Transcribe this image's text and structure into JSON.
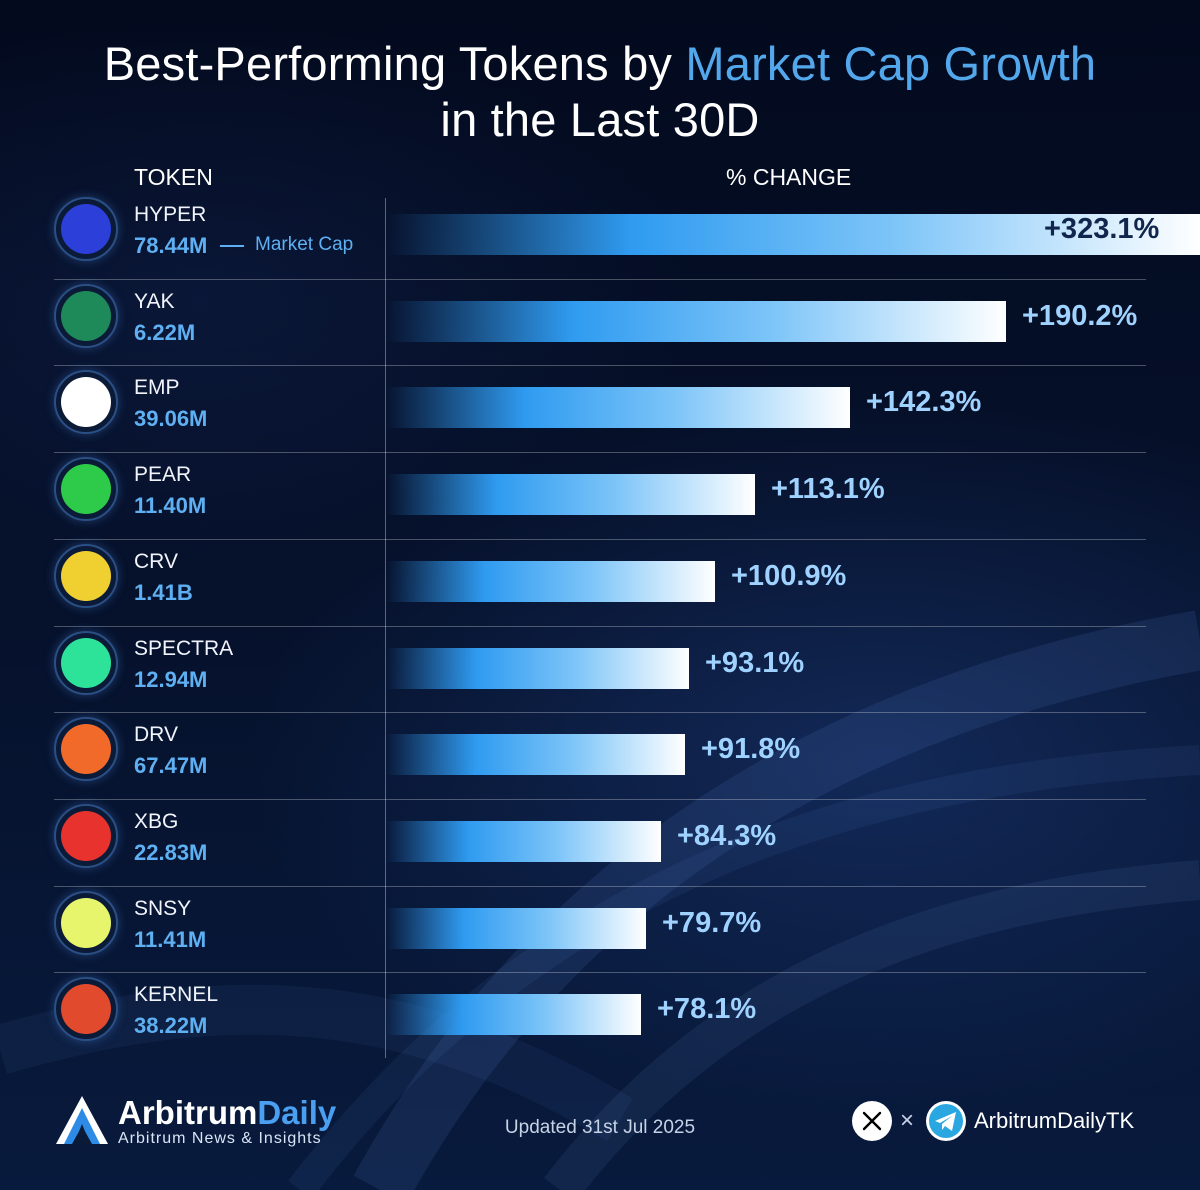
{
  "title": {
    "line1_pre": "Best-Performing Tokens by ",
    "line1_highlight": "Market Cap Growth",
    "line2": "in the Last 30D"
  },
  "columns": {
    "token": "TOKEN",
    "change": "% CHANGE"
  },
  "market_cap_label": "Market Cap",
  "chart_data": {
    "type": "bar",
    "orientation": "horizontal",
    "title": "Best-Performing Tokens by Market Cap Growth in the Last 30D",
    "xlabel": "% CHANGE",
    "ylabel": "TOKEN",
    "categories": [
      "HYPER",
      "YAK",
      "EMP",
      "PEAR",
      "CRV",
      "SPECTRA",
      "DRV",
      "XBG",
      "SNSY",
      "KERNEL"
    ],
    "series": [
      {
        "name": "% CHANGE",
        "values": [
          323.1,
          190.2,
          142.3,
          113.1,
          100.9,
          93.1,
          91.8,
          84.3,
          79.7,
          78.1
        ]
      }
    ],
    "value_labels": [
      "+323.1%",
      "+190.2%",
      "+142.3%",
      "+113.1%",
      "+100.9%",
      "+93.1%",
      "+91.8%",
      "+84.3%",
      "+79.7%",
      "+78.1%"
    ],
    "market_caps": [
      "78.44M",
      "6.22M",
      "39.06M",
      "11.40M",
      "1.41B",
      "12.94M",
      "67.47M",
      "22.83M",
      "11.41M",
      "38.22M"
    ],
    "grid": false,
    "legend": "none"
  },
  "tokens": [
    {
      "name": "HYPER",
      "cap": "78.44M",
      "change": "+323.1%",
      "logo": "hyper-logo-icon",
      "color": "#2c3fd8"
    },
    {
      "name": "YAK",
      "cap": "6.22M",
      "change": "+190.2%",
      "logo": "yak-logo-icon",
      "color": "#1e8a5a"
    },
    {
      "name": "EMP",
      "cap": "39.06M",
      "change": "+142.3%",
      "logo": "emp-logo-icon",
      "color": "#ffffff"
    },
    {
      "name": "PEAR",
      "cap": "11.40M",
      "change": "+113.1%",
      "logo": "pear-logo-icon",
      "color": "#2ecb4a"
    },
    {
      "name": "CRV",
      "cap": "1.41B",
      "change": "+100.9%",
      "logo": "crv-logo-icon",
      "color": "#f0d030"
    },
    {
      "name": "SPECTRA",
      "cap": "12.94M",
      "change": "+93.1%",
      "logo": "spectra-logo-icon",
      "color": "#2de39a"
    },
    {
      "name": "DRV",
      "cap": "67.47M",
      "change": "+91.8%",
      "logo": "drv-logo-icon",
      "color": "#f26a2a"
    },
    {
      "name": "XBG",
      "cap": "22.83M",
      "change": "+84.3%",
      "logo": "xbg-logo-icon",
      "color": "#e8322e"
    },
    {
      "name": "SNSY",
      "cap": "11.41M",
      "change": "+79.7%",
      "logo": "snsy-logo-icon",
      "color": "#e6f56b"
    },
    {
      "name": "KERNEL",
      "cap": "38.22M",
      "change": "+78.1%",
      "logo": "kernel-logo-icon",
      "color": "#e24a2e"
    }
  ],
  "footer": {
    "brand_main": "Arbitrum",
    "brand_accent": "Daily",
    "brand_sub": "Arbitrum News & Insights",
    "updated": "Updated 31st Jul 2025",
    "times": "×",
    "handle": "ArbitrumDailyTK",
    "icons": [
      "x-logo-icon",
      "telegram-icon"
    ]
  }
}
